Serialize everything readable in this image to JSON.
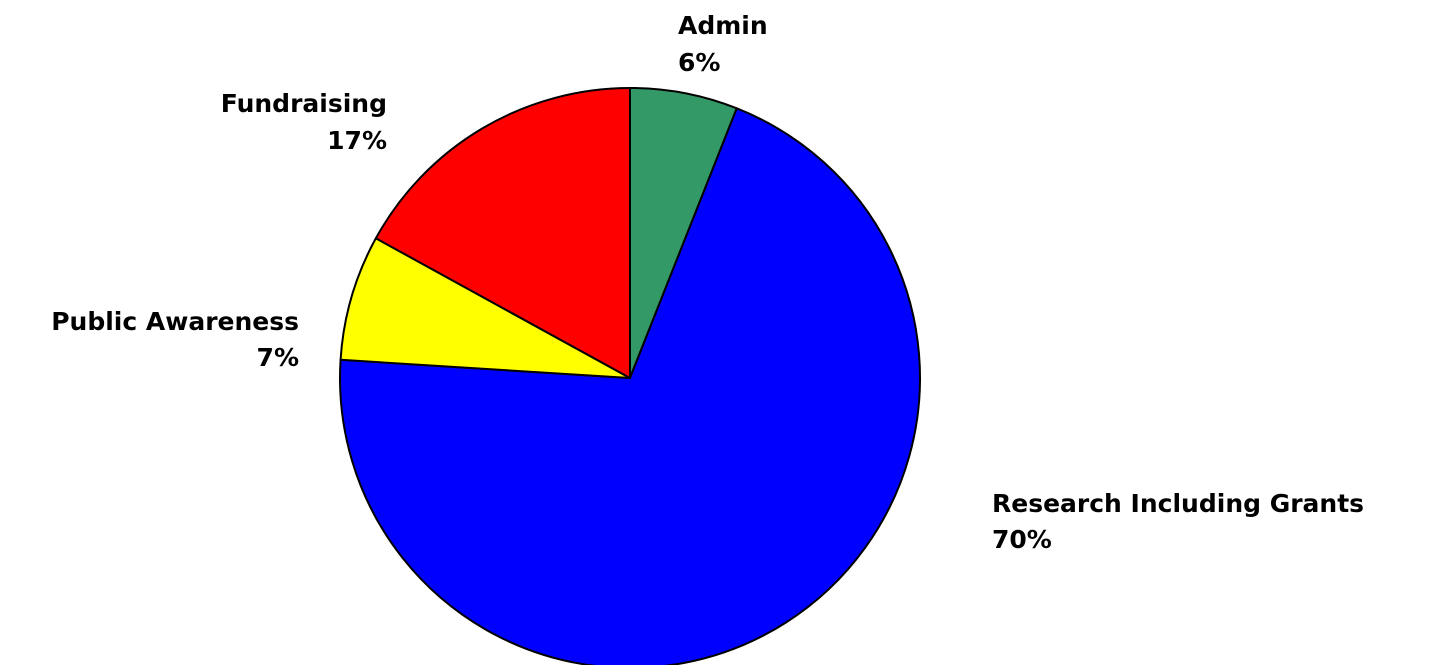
{
  "chart_data": {
    "type": "pie",
    "title": "",
    "start_angle_deg": 0,
    "direction": "clockwise",
    "slices": [
      {
        "label": "Admin",
        "value_label": "6%",
        "value": 6,
        "color": "#339966"
      },
      {
        "label": "Research Including Grants",
        "value_label": "70%",
        "value": 70,
        "color": "#0000ff"
      },
      {
        "label": "Public Awareness",
        "value_label": "7%",
        "value": 7,
        "color": "#ffff00"
      },
      {
        "label": "Fundraising",
        "value_label": "17%",
        "value": 17,
        "color": "#ff0000"
      }
    ],
    "legend": "none",
    "label_position": "outside"
  }
}
